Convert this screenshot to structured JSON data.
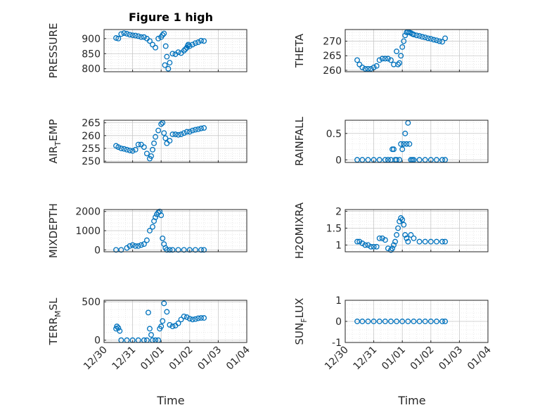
{
  "title": "Figure 1 high",
  "xlabel": "Time",
  "x_ticks": [
    "12/30",
    "12/31",
    "01/01",
    "01/02",
    "01/03",
    "01/04"
  ],
  "marker_color": "#0072BD",
  "chart_data": [
    {
      "type": "scatter",
      "name": "PRESSURE",
      "ylabel": "PRESSURE",
      "ylim": [
        790,
        930
      ],
      "yticks": [
        800,
        850,
        900
      ],
      "grid": true,
      "x": [
        0.42,
        0.5,
        0.6,
        0.7,
        0.8,
        0.9,
        1.0,
        1.1,
        1.2,
        1.3,
        1.4,
        1.5,
        1.6,
        1.7,
        1.8,
        1.9,
        2.0,
        2.05,
        2.1,
        2.13,
        2.16,
        2.2,
        2.25,
        2.3,
        2.4,
        2.5,
        2.6,
        2.7,
        2.8,
        2.85,
        2.9,
        2.93,
        2.95,
        3.0,
        3.1,
        3.2,
        3.3,
        3.4,
        3.5
      ],
      "y": [
        902,
        900,
        915,
        918,
        916,
        913,
        911,
        910,
        908,
        905,
        905,
        900,
        892,
        880,
        870,
        900,
        905,
        912,
        917,
        812,
        875,
        840,
        800,
        820,
        850,
        848,
        855,
        852,
        860,
        865,
        870,
        876,
        880,
        875,
        880,
        885,
        888,
        893,
        892
      ]
    },
    {
      "type": "scatter",
      "name": "THETA",
      "ylabel": "THETA",
      "ylim": [
        259.5,
        274
      ],
      "yticks": [
        260,
        265,
        270
      ],
      "grid": true,
      "x": [
        0.42,
        0.5,
        0.6,
        0.7,
        0.8,
        0.9,
        1.0,
        1.1,
        1.2,
        1.3,
        1.4,
        1.5,
        1.6,
        1.7,
        1.8,
        1.85,
        1.9,
        1.95,
        2.0,
        2.05,
        2.1,
        2.15,
        2.2,
        2.25,
        2.3,
        2.35,
        2.4,
        2.5,
        2.6,
        2.7,
        2.8,
        2.9,
        3.0,
        3.1,
        3.2,
        3.3,
        3.4,
        3.5
      ],
      "y": [
        263.5,
        262,
        261,
        260.5,
        260.5,
        260.5,
        261,
        261.5,
        263.5,
        264,
        264,
        264,
        263.5,
        262,
        266.5,
        262,
        262.5,
        265,
        268,
        270,
        272,
        273,
        273.2,
        273,
        272.8,
        272.5,
        272.3,
        272,
        271.8,
        271.5,
        271.3,
        271,
        270.8,
        270.5,
        270.3,
        270,
        269.8,
        271
      ]
    },
    {
      "type": "scatter",
      "name": "AIR_TEMP",
      "ylabel": "AIR_TEMP",
      "ylim": [
        249.5,
        266
      ],
      "yticks": [
        250,
        255,
        260,
        265
      ],
      "grid": true,
      "x": [
        0.42,
        0.5,
        0.6,
        0.7,
        0.8,
        0.9,
        1.0,
        1.1,
        1.2,
        1.3,
        1.4,
        1.5,
        1.6,
        1.65,
        1.7,
        1.75,
        1.8,
        1.9,
        2.0,
        2.05,
        2.1,
        2.15,
        2.2,
        2.3,
        2.4,
        2.5,
        2.6,
        2.7,
        2.8,
        2.9,
        3.0,
        3.1,
        3.2,
        3.3,
        3.4,
        3.5
      ],
      "y": [
        256,
        255.5,
        255,
        254.8,
        254.5,
        254.2,
        254,
        254.5,
        256.5,
        256.5,
        255.5,
        253,
        251,
        252,
        254.5,
        257,
        259.5,
        262,
        264.5,
        265,
        261,
        259,
        257,
        258,
        260.5,
        260.5,
        260.3,
        260.5,
        261,
        261.5,
        261.5,
        262,
        262.3,
        262.5,
        262.8,
        263
      ]
    },
    {
      "type": "scatter",
      "name": "RAINFALL",
      "ylabel": "RAINFALL",
      "ylim": [
        -0.05,
        0.75
      ],
      "yticks": [
        0,
        0.5
      ],
      "grid": true,
      "x": [
        0.42,
        0.6,
        0.8,
        1.0,
        1.2,
        1.4,
        1.5,
        1.6,
        1.65,
        1.7,
        1.75,
        1.8,
        1.9,
        1.95,
        2.0,
        2.05,
        2.1,
        2.15,
        2.2,
        2.25,
        2.3,
        2.35,
        2.4,
        2.6,
        2.8,
        3.0,
        3.2,
        3.4,
        3.5
      ],
      "y": [
        0,
        0,
        0,
        0,
        0,
        0,
        0,
        0,
        0.2,
        0.2,
        0,
        0,
        0,
        0.3,
        0.2,
        0.3,
        0.5,
        0.3,
        0.7,
        0.3,
        0,
        0,
        0,
        0,
        0,
        0,
        0,
        0,
        0
      ]
    },
    {
      "type": "scatter",
      "name": "MIXDEPTH",
      "ylabel": "MIXDEPTH",
      "ylim": [
        -100,
        2100
      ],
      "yticks": [
        0,
        1000,
        2000
      ],
      "grid": true,
      "x": [
        0.42,
        0.6,
        0.8,
        0.9,
        1.0,
        1.1,
        1.2,
        1.3,
        1.4,
        1.5,
        1.6,
        1.7,
        1.75,
        1.8,
        1.85,
        1.9,
        1.95,
        2.0,
        2.05,
        2.1,
        2.15,
        2.2,
        2.3,
        2.4,
        2.6,
        2.8,
        3.0,
        3.2,
        3.4,
        3.5
      ],
      "y": [
        0,
        0,
        100,
        200,
        250,
        200,
        200,
        250,
        300,
        500,
        1000,
        1200,
        1500,
        1700,
        1850,
        1950,
        2000,
        1800,
        600,
        300,
        100,
        0,
        0,
        0,
        0,
        0,
        0,
        0,
        0,
        0
      ]
    },
    {
      "type": "scatter",
      "name": "H2OMIXRA",
      "ylabel": "H2OMIXRA",
      "ylim": [
        0.8,
        2.05
      ],
      "yticks": [
        1,
        1.5,
        2
      ],
      "grid": true,
      "x": [
        0.42,
        0.5,
        0.6,
        0.7,
        0.8,
        0.9,
        1.0,
        1.1,
        1.2,
        1.3,
        1.4,
        1.5,
        1.6,
        1.65,
        1.7,
        1.75,
        1.8,
        1.85,
        1.9,
        1.95,
        2.0,
        2.05,
        2.1,
        2.15,
        2.2,
        2.3,
        2.4,
        2.6,
        2.8,
        3.0,
        3.2,
        3.4,
        3.5
      ],
      "y": [
        1.1,
        1.1,
        1.05,
        1.0,
        1.0,
        0.95,
        0.95,
        0.95,
        1.2,
        1.2,
        1.15,
        0.9,
        0.85,
        0.9,
        1.0,
        1.1,
        1.3,
        1.5,
        1.7,
        1.8,
        1.75,
        1.6,
        1.3,
        1.2,
        1.1,
        1.3,
        1.2,
        1.1,
        1.1,
        1.1,
        1.1,
        1.1,
        1.1
      ]
    },
    {
      "type": "scatter",
      "name": "TERR_MSL",
      "ylabel": "TERR_MSL",
      "ylim": [
        -30,
        520
      ],
      "yticks": [
        0,
        500
      ],
      "grid": true,
      "x": [
        0.42,
        0.45,
        0.5,
        0.55,
        0.6,
        0.8,
        1.0,
        1.2,
        1.4,
        1.5,
        1.55,
        1.6,
        1.65,
        1.7,
        1.8,
        1.9,
        1.95,
        2.0,
        2.05,
        2.1,
        2.2,
        2.3,
        2.4,
        2.5,
        2.6,
        2.7,
        2.8,
        2.9,
        3.0,
        3.1,
        3.2,
        3.3,
        3.4,
        3.5
      ],
      "y": [
        150,
        180,
        160,
        120,
        0,
        0,
        0,
        0,
        0,
        0,
        360,
        150,
        70,
        0,
        0,
        0,
        150,
        180,
        250,
        480,
        370,
        200,
        180,
        190,
        220,
        270,
        310,
        300,
        280,
        270,
        275,
        285,
        290,
        290
      ]
    },
    {
      "type": "scatter",
      "name": "SUN_FLUX",
      "ylabel": "SUN_FLUX",
      "ylim": [
        -1,
        1
      ],
      "yticks": [
        -1,
        0,
        1
      ],
      "grid": true,
      "x": [
        0.42,
        0.6,
        0.8,
        1.0,
        1.2,
        1.4,
        1.6,
        1.8,
        2.0,
        2.2,
        2.4,
        2.6,
        2.8,
        3.0,
        3.2,
        3.4,
        3.5
      ],
      "y": [
        0,
        0,
        0,
        0,
        0,
        0,
        0,
        0,
        0,
        0,
        0,
        0,
        0,
        0,
        0,
        0,
        0
      ]
    }
  ],
  "ylabel_display": [
    {
      "pre": "PRESSURE",
      "sub": "",
      "post": ""
    },
    {
      "pre": "THETA",
      "sub": "",
      "post": ""
    },
    {
      "pre": "AIR",
      "sub": "T",
      "post": "EMP"
    },
    {
      "pre": "RAINFALL",
      "sub": "",
      "post": ""
    },
    {
      "pre": "MIXDEPTH",
      "sub": "",
      "post": ""
    },
    {
      "pre": "H2OMIXRA",
      "sub": "",
      "post": ""
    },
    {
      "pre": "TERR",
      "sub": "M",
      "post": "SL"
    },
    {
      "pre": "SUN",
      "sub": "F",
      "post": "LUX"
    }
  ]
}
